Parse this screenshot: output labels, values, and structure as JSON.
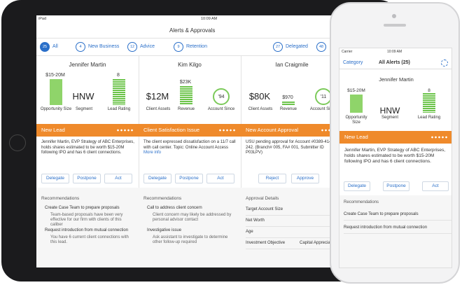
{
  "ipad": {
    "status": {
      "carrier": "iPad",
      "time": "10:09 AM"
    },
    "title": "Alerts & Approvals",
    "filters": [
      {
        "count": "25",
        "label": "All"
      },
      {
        "count": "4",
        "label": "New Business"
      },
      {
        "count": "12",
        "label": "Advice"
      },
      {
        "count": "9",
        "label": "Retention"
      },
      {
        "count": "27",
        "label": "Delegated"
      },
      {
        "count": "48"
      }
    ],
    "cards": [
      {
        "name": "Jennifer Martin",
        "metrics": [
          {
            "value": "$15-20M",
            "label": "Opportunity Size"
          },
          {
            "value": "HNW",
            "label": "Segment"
          },
          {
            "value": "8",
            "label": "Lead Rating"
          }
        ],
        "banner": "New Lead",
        "body": "Jennifer Martin, EVP Strategy of ABC Enterprises, holds shares estimated to be worth $15-20M following IPO and has 6 client connections.",
        "buttons": [
          "Delegate",
          "Postpone",
          "Act"
        ],
        "section": "Recommendations",
        "items": [
          {
            "title": "Create Case Team to prepare proposals",
            "detail": "Team-based proposals have been very effective for our firm with clients of this caliber"
          },
          {
            "title": "Request introduction from mutual connection",
            "detail": "You have 6 current client connections with this lead."
          }
        ]
      },
      {
        "name": "Kim Kilgo",
        "metrics": [
          {
            "value": "$12M",
            "label": "Client Assets"
          },
          {
            "value": "$23K",
            "label": "Revenue"
          },
          {
            "value": "'94",
            "label": "Account Since"
          }
        ],
        "banner": "Client Satisfaction Issue",
        "body": "The client expressed dissatisfaction on a 11/7 call with call center.  Topic: Online Account Access",
        "link": "More info",
        "buttons": [
          "Delegate",
          "Postpone",
          "Act"
        ],
        "section": "Recommendations",
        "items": [
          {
            "title": "Call to address client concern",
            "detail": "Client concern may likely be addressed by personal advisor contact"
          },
          {
            "title": "Investigative issue",
            "detail": "Ask assistant to investigate to determine other follow-up required"
          }
        ]
      },
      {
        "name": "Ian Craigmile",
        "metrics": [
          {
            "value": "$80K",
            "label": "Client Assets"
          },
          {
            "value": "$970",
            "label": "Revenue"
          },
          {
            "value": "'11",
            "label": "Account Since"
          }
        ],
        "banner": "New Account Approval",
        "body": "USU pending approval for Account #0389-4146-242. (Branch# 005, FA# 001, Submitter ID P03LPV)",
        "buttons": [
          "Reject",
          "Approve"
        ],
        "section": "Approval Details",
        "rows": [
          {
            "label": "Target Account Size"
          },
          {
            "label": "Net Worth"
          },
          {
            "label": "Age"
          },
          {
            "label": "Investment Objective",
            "value": "Capital Appreciat"
          }
        ]
      }
    ]
  },
  "iphone": {
    "status": {
      "carrier": "Carrier",
      "time": "10:09 AM"
    },
    "nav": {
      "left": "Category",
      "title": "All Alerts (25)"
    },
    "card": {
      "name": "Jennifer Martin",
      "metrics": [
        {
          "value": "$15-20M",
          "label": "Opportunity Size"
        },
        {
          "value": "HNW",
          "label": "Segment"
        },
        {
          "value": "8",
          "label": "Lead Rating"
        }
      ],
      "banner": "New Lead",
      "body": "Jennifer Martin, EVP Strategy of ABC Enterprises, holds shares estimated to be worth $15-20M following IPO and has 6 client connections.",
      "buttons": [
        "Delegate",
        "Postpone",
        "Act"
      ],
      "section": "Recommendations",
      "items": [
        "Create Case Team to prepare proposals",
        "Request introduction from mutual connection"
      ]
    }
  }
}
